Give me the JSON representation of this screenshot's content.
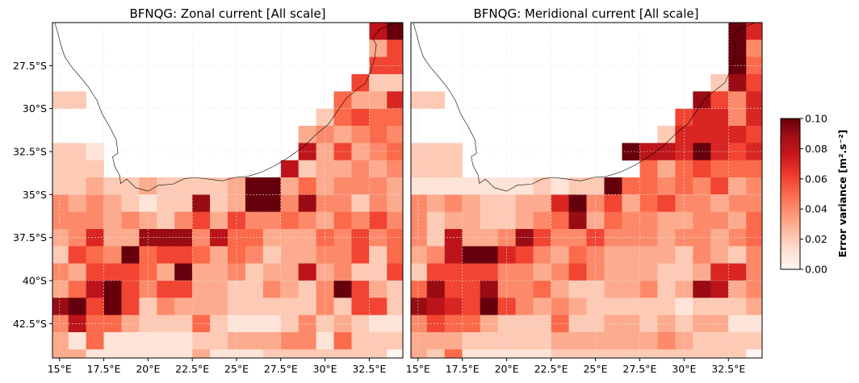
{
  "chart_data": [
    {
      "type": "heatmap",
      "title": "BFNQG: Zonal current [All scale]",
      "xlabel": "",
      "ylabel": "",
      "x_range_deg": [
        14.6,
        34.4
      ],
      "y_range_deg": [
        -44.5,
        -25.0
      ],
      "cell_deg": 1.0,
      "x_ticks": [
        15,
        17.5,
        20,
        22.5,
        25,
        27.5,
        30,
        32.5
      ],
      "x_tick_labels": [
        "15°E",
        "17.5°E",
        "20°E",
        "22.5°E",
        "25°E",
        "27.5°E",
        "30°E",
        "32.5°E"
      ],
      "y_ticks": [
        -27.5,
        -30,
        -32.5,
        -35,
        -37.5,
        -40,
        -42.5
      ],
      "y_tick_labels": [
        "27.5°S",
        "30°S",
        "32.5°S",
        "35°S",
        "37.5°S",
        "40°S",
        "42.5°S"
      ],
      "grid": true,
      "value_rows_north_to_south": [
        [
          null,
          null,
          null,
          null,
          null,
          null,
          null,
          null,
          null,
          null,
          null,
          null,
          null,
          null,
          null,
          null,
          null,
          null,
          0.08,
          0.1
        ],
        [
          null,
          null,
          null,
          null,
          null,
          null,
          null,
          null,
          null,
          null,
          null,
          null,
          null,
          null,
          null,
          null,
          null,
          null,
          0.03,
          0.06
        ],
        [
          null,
          null,
          null,
          null,
          null,
          null,
          null,
          null,
          null,
          null,
          null,
          null,
          null,
          null,
          null,
          null,
          null,
          null,
          0.06,
          0.06
        ],
        [
          null,
          null,
          null,
          null,
          null,
          null,
          null,
          null,
          null,
          null,
          null,
          null,
          null,
          null,
          null,
          null,
          null,
          0.06,
          0.02,
          0.02
        ],
        [
          0.02,
          0.02,
          null,
          null,
          null,
          null,
          null,
          null,
          null,
          null,
          null,
          null,
          null,
          null,
          null,
          null,
          0.05,
          0.03,
          0.03,
          0.07
        ],
        [
          null,
          null,
          null,
          null,
          null,
          null,
          null,
          null,
          null,
          null,
          null,
          null,
          null,
          null,
          null,
          0.02,
          0.05,
          0.06,
          0.05,
          0.05
        ],
        [
          null,
          null,
          null,
          null,
          null,
          null,
          null,
          null,
          null,
          null,
          null,
          null,
          null,
          null,
          0.03,
          0.04,
          0.03,
          0.04,
          0.05,
          0.04
        ],
        [
          0.02,
          0.02,
          0.01,
          null,
          null,
          null,
          null,
          null,
          null,
          null,
          null,
          null,
          null,
          null,
          0.08,
          0.03,
          0.06,
          0.03,
          0.04,
          0.05
        ],
        [
          0.02,
          0.02,
          0.02,
          null,
          null,
          null,
          null,
          null,
          null,
          null,
          null,
          null,
          null,
          0.08,
          0.02,
          0.03,
          0.03,
          0.04,
          0.03,
          0.04
        ],
        [
          0.02,
          0.02,
          0.03,
          0.02,
          0.02,
          0.03,
          0.02,
          0.02,
          0.02,
          0.02,
          0.03,
          0.1,
          0.1,
          0.03,
          0.05,
          0.03,
          0.04,
          0.04,
          0.04,
          0.03
        ],
        [
          0.04,
          0.03,
          0.04,
          0.03,
          0.02,
          0.01,
          0.02,
          0.02,
          0.09,
          0.02,
          0.03,
          0.1,
          0.1,
          0.04,
          0.09,
          0.04,
          0.04,
          0.02,
          0.04,
          0.03
        ],
        [
          0.04,
          0.04,
          0.04,
          0.03,
          0.04,
          0.03,
          0.02,
          0.04,
          0.06,
          0.03,
          0.06,
          0.04,
          0.04,
          0.05,
          0.04,
          0.03,
          0.05,
          0.04,
          0.06,
          0.04
        ],
        [
          0.03,
          0.04,
          0.07,
          0.03,
          0.03,
          0.09,
          0.09,
          0.09,
          0.04,
          0.08,
          0.05,
          0.05,
          0.03,
          0.03,
          0.03,
          0.05,
          0.04,
          0.06,
          0.04,
          0.05
        ],
        [
          0.02,
          0.06,
          0.05,
          0.04,
          0.1,
          0.05,
          0.06,
          0.06,
          0.05,
          0.03,
          0.05,
          0.04,
          0.02,
          0.03,
          0.03,
          0.04,
          0.04,
          0.06,
          0.02,
          0.05
        ],
        [
          0.04,
          0.03,
          0.06,
          0.06,
          0.06,
          0.05,
          0.03,
          0.1,
          0.03,
          0.03,
          0.04,
          0.02,
          0.03,
          0.03,
          0.08,
          0.03,
          0.04,
          0.02,
          0.02,
          0.06
        ],
        [
          0.03,
          0.05,
          0.08,
          0.1,
          0.06,
          0.04,
          0.06,
          0.06,
          0.03,
          0.03,
          0.02,
          0.02,
          0.04,
          0.03,
          0.02,
          0.04,
          0.1,
          0.06,
          0.03,
          0.02
        ],
        [
          0.09,
          0.1,
          0.06,
          0.1,
          0.06,
          0.02,
          0.04,
          0.03,
          0.03,
          0.03,
          0.02,
          0.02,
          0.02,
          0.02,
          0.02,
          0.04,
          0.02,
          0.06,
          0.06,
          0.02
        ],
        [
          0.04,
          0.08,
          0.05,
          0.05,
          0.03,
          0.02,
          0.02,
          0.02,
          0.05,
          0.02,
          0.01,
          0.01,
          0.01,
          0.02,
          0.04,
          0.02,
          0.03,
          0.02,
          0.01,
          0.01
        ],
        [
          0.03,
          0.01,
          0.05,
          0.01,
          0.01,
          0.01,
          0.01,
          0.01,
          0.02,
          0.02,
          0.03,
          0.03,
          0.03,
          0.04,
          0.04,
          0.01,
          0.05,
          0.02,
          0.02,
          0.02
        ],
        [
          0.03,
          0.03,
          0.01,
          0.01,
          0.01,
          0.01,
          0.01,
          0.01,
          0.03,
          0.01,
          0.01,
          0.01,
          0.02,
          0.02,
          0.02,
          0.02,
          0.02,
          0.02,
          0.02,
          0.0
        ]
      ]
    },
    {
      "type": "heatmap",
      "title": "BFNQG: Meridional current [All scale]",
      "xlabel": "",
      "ylabel": "",
      "x_range_deg": [
        14.6,
        34.4
      ],
      "y_range_deg": [
        -44.5,
        -25.0
      ],
      "cell_deg": 1.0,
      "x_ticks": [
        15,
        17.5,
        20,
        22.5,
        25,
        27.5,
        30,
        32.5
      ],
      "x_tick_labels": [
        "15°E",
        "17.5°E",
        "20°E",
        "22.5°E",
        "25°E",
        "27.5°E",
        "30°E",
        "32.5°E"
      ],
      "grid": true,
      "value_rows_north_to_south": [
        [
          null,
          null,
          null,
          null,
          null,
          null,
          null,
          null,
          null,
          null,
          null,
          null,
          null,
          null,
          null,
          null,
          null,
          null,
          0.1,
          0.07
        ],
        [
          null,
          null,
          null,
          null,
          null,
          null,
          null,
          null,
          null,
          null,
          null,
          null,
          null,
          null,
          null,
          null,
          null,
          null,
          0.1,
          0.04
        ],
        [
          null,
          null,
          null,
          null,
          null,
          null,
          null,
          null,
          null,
          null,
          null,
          null,
          null,
          null,
          null,
          null,
          null,
          null,
          0.1,
          0.05
        ],
        [
          null,
          null,
          null,
          null,
          null,
          null,
          null,
          null,
          null,
          null,
          null,
          null,
          null,
          null,
          null,
          null,
          null,
          0.02,
          0.09,
          0.06
        ],
        [
          0.02,
          0.02,
          null,
          null,
          null,
          null,
          null,
          null,
          null,
          null,
          null,
          null,
          null,
          null,
          null,
          null,
          0.09,
          0.06,
          0.04,
          0.07
        ],
        [
          null,
          null,
          null,
          null,
          null,
          null,
          null,
          null,
          null,
          null,
          null,
          null,
          null,
          null,
          null,
          0.06,
          0.07,
          0.07,
          0.04,
          0.07
        ],
        [
          null,
          null,
          null,
          null,
          null,
          null,
          null,
          null,
          null,
          null,
          null,
          null,
          null,
          null,
          0.02,
          0.07,
          0.07,
          0.07,
          0.07,
          0.06
        ],
        [
          0.02,
          0.02,
          0.02,
          null,
          null,
          null,
          null,
          null,
          null,
          null,
          null,
          null,
          0.1,
          0.08,
          0.08,
          0.07,
          0.1,
          0.07,
          0.06,
          0.07
        ],
        [
          0.02,
          0.02,
          0.02,
          null,
          null,
          null,
          null,
          null,
          null,
          null,
          null,
          null,
          null,
          0.05,
          0.03,
          0.05,
          0.06,
          0.05,
          0.05,
          0.05
        ],
        [
          0.01,
          0.01,
          0.01,
          0.01,
          0.01,
          0.01,
          0.01,
          0.02,
          0.01,
          0.02,
          0.02,
          0.1,
          0.05,
          0.05,
          0.04,
          0.05,
          0.04,
          0.06,
          0.03,
          0.04
        ],
        [
          0.04,
          0.03,
          0.04,
          0.03,
          0.02,
          0.02,
          0.03,
          0.03,
          0.07,
          0.1,
          0.04,
          0.06,
          0.03,
          0.05,
          0.06,
          0.04,
          0.04,
          0.03,
          0.04,
          0.04
        ],
        [
          0.04,
          0.02,
          0.03,
          0.03,
          0.02,
          0.02,
          0.03,
          0.04,
          0.05,
          0.09,
          0.03,
          0.05,
          0.04,
          0.04,
          0.03,
          0.03,
          0.04,
          0.04,
          0.03,
          0.05
        ],
        [
          0.04,
          0.02,
          0.08,
          0.03,
          0.03,
          0.04,
          0.09,
          0.06,
          0.04,
          0.04,
          0.06,
          0.04,
          0.04,
          0.04,
          0.03,
          0.04,
          0.04,
          0.03,
          0.04,
          0.05
        ],
        [
          0.03,
          0.04,
          0.08,
          0.1,
          0.1,
          0.07,
          0.06,
          0.04,
          0.03,
          0.05,
          0.04,
          0.03,
          0.03,
          0.03,
          0.03,
          0.02,
          0.04,
          0.03,
          0.02,
          0.04
        ],
        [
          0.02,
          0.06,
          0.06,
          0.06,
          0.06,
          0.04,
          0.04,
          0.03,
          0.04,
          0.06,
          0.04,
          0.03,
          0.03,
          0.03,
          0.02,
          0.02,
          0.03,
          0.07,
          0.07,
          0.04
        ],
        [
          0.05,
          0.09,
          0.06,
          0.06,
          0.09,
          0.04,
          0.04,
          0.05,
          0.03,
          0.02,
          0.02,
          0.03,
          0.03,
          0.04,
          0.02,
          0.03,
          0.09,
          0.08,
          0.03,
          0.04
        ],
        [
          0.09,
          0.08,
          0.07,
          0.06,
          0.1,
          0.06,
          0.04,
          0.03,
          0.04,
          0.03,
          0.02,
          0.02,
          0.02,
          0.02,
          0.02,
          0.01,
          0.02,
          0.02,
          0.02,
          0.03
        ],
        [
          0.04,
          0.06,
          0.05,
          0.05,
          0.03,
          0.02,
          0.02,
          0.02,
          0.05,
          0.02,
          0.02,
          0.03,
          0.03,
          0.02,
          0.03,
          0.02,
          0.03,
          0.03,
          0.01,
          0.01
        ],
        [
          0.03,
          0.03,
          0.03,
          0.02,
          0.02,
          0.02,
          0.02,
          0.02,
          0.03,
          0.03,
          0.03,
          0.03,
          0.03,
          0.03,
          0.04,
          0.03,
          0.02,
          0.02,
          0.02,
          0.02
        ],
        [
          0.03,
          0.02,
          0.05,
          0.01,
          0.01,
          0.01,
          0.01,
          0.01,
          0.02,
          0.02,
          0.02,
          0.02,
          0.02,
          0.02,
          0.02,
          0.02,
          0.02,
          0.02,
          0.02,
          0.0
        ]
      ]
    }
  ],
  "colorbar": {
    "label": "Error variance [m².s⁻²]",
    "range": [
      0.0,
      0.1
    ],
    "tick_labels": [
      "0.00",
      "0.02",
      "0.04",
      "0.06",
      "0.08",
      "0.10"
    ],
    "colormap": "Reds",
    "colors": [
      "#fff5f0",
      "#fee0d2",
      "#fcbba1",
      "#fc9272",
      "#fb6a4a",
      "#ef3b2c",
      "#cb181d",
      "#a50f15",
      "#67000d"
    ]
  }
}
